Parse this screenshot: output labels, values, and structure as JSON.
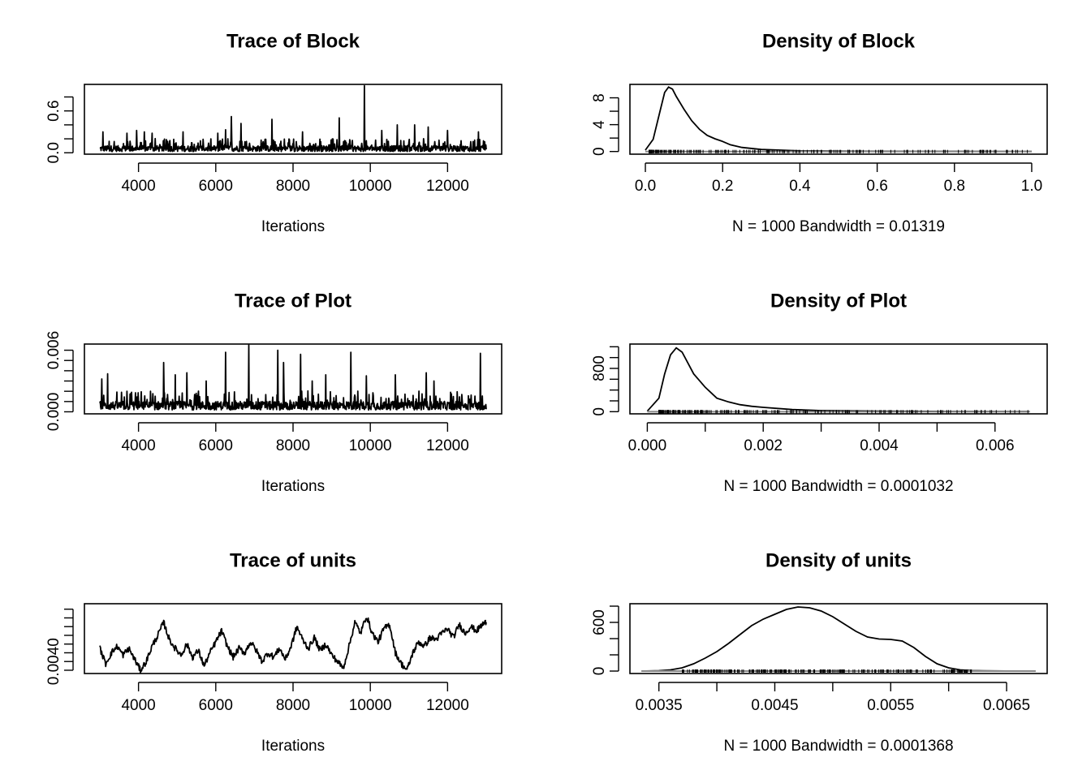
{
  "chart_data": [
    {
      "type": "line",
      "title": "Trace of Block",
      "xlabel": "Iterations",
      "xlim": [
        2600,
        13400
      ],
      "ylim": [
        -0.02,
        0.98
      ],
      "xticks": [
        4000,
        6000,
        8000,
        10000,
        12000
      ],
      "xtick_labels": [
        "4000",
        "6000",
        "8000",
        "10000",
        "12000"
      ],
      "yticks": [
        0.0,
        0.2,
        0.4,
        0.6,
        0.8
      ],
      "ytick_labels": [
        "0.0",
        "",
        "",
        "0.6",
        ""
      ],
      "x_range": [
        3000,
        13000
      ],
      "n_iter": 1000,
      "baseline": 0.06,
      "spikes": [
        {
          "x": 3080,
          "y": 0.3
        },
        {
          "x": 3700,
          "y": 0.28
        },
        {
          "x": 3950,
          "y": 0.32
        },
        {
          "x": 4150,
          "y": 0.3
        },
        {
          "x": 4350,
          "y": 0.28
        },
        {
          "x": 5150,
          "y": 0.3
        },
        {
          "x": 6050,
          "y": 0.28
        },
        {
          "x": 6250,
          "y": 0.33
        },
        {
          "x": 6400,
          "y": 0.52
        },
        {
          "x": 6650,
          "y": 0.42
        },
        {
          "x": 7450,
          "y": 0.48
        },
        {
          "x": 8250,
          "y": 0.3
        },
        {
          "x": 9200,
          "y": 0.5
        },
        {
          "x": 9850,
          "y": 0.96
        },
        {
          "x": 10300,
          "y": 0.32
        },
        {
          "x": 10700,
          "y": 0.4
        },
        {
          "x": 11150,
          "y": 0.4
        },
        {
          "x": 11500,
          "y": 0.37
        },
        {
          "x": 12000,
          "y": 0.32
        },
        {
          "x": 12800,
          "y": 0.3
        }
      ]
    },
    {
      "type": "line",
      "title": "Density of Block",
      "xlabel": "N = 1000   Bandwidth = 0.01319",
      "xlim": [
        -0.04,
        1.04
      ],
      "ylim": [
        -0.4,
        10.0
      ],
      "xticks": [
        0.0,
        0.2,
        0.4,
        0.6,
        0.8,
        1.0
      ],
      "xtick_labels": [
        "0.0",
        "0.2",
        "0.4",
        "0.6",
        "0.8",
        "1.0"
      ],
      "yticks": [
        0,
        2,
        4,
        6,
        8
      ],
      "ytick_labels": [
        "0",
        "",
        "4",
        "",
        "8"
      ],
      "x": [
        0.0,
        0.02,
        0.04,
        0.05,
        0.06,
        0.07,
        0.08,
        0.1,
        0.12,
        0.14,
        0.16,
        0.18,
        0.2,
        0.22,
        0.25,
        0.3,
        0.35,
        0.4,
        0.5,
        0.6,
        0.7,
        0.8,
        0.9,
        1.0
      ],
      "y": [
        0.2,
        1.8,
        6.5,
        8.8,
        9.6,
        9.3,
        8.2,
        6.3,
        4.6,
        3.3,
        2.4,
        1.9,
        1.5,
        1.0,
        0.6,
        0.3,
        0.2,
        0.1,
        0.05,
        0.03,
        0.02,
        0.02,
        0.01,
        0.01
      ],
      "rug_range": [
        0.01,
        0.99
      ]
    },
    {
      "type": "line",
      "title": "Trace of Plot",
      "xlabel": "Iterations",
      "xlim": [
        2600,
        13400
      ],
      "ylim": [
        -0.0002,
        0.0066
      ],
      "xticks": [
        4000,
        6000,
        8000,
        10000,
        12000
      ],
      "xtick_labels": [
        "4000",
        "6000",
        "8000",
        "10000",
        "12000"
      ],
      "yticks": [
        0.0,
        0.001,
        0.002,
        0.003,
        0.004,
        0.005,
        0.006
      ],
      "ytick_labels": [
        "0.000",
        "",
        "",
        "",
        "",
        "",
        "0.006"
      ],
      "x_range": [
        3000,
        13000
      ],
      "n_iter": 1000,
      "baseline": 0.0006,
      "spikes": [
        {
          "x": 3050,
          "y": 0.0032
        },
        {
          "x": 3200,
          "y": 0.0037
        },
        {
          "x": 3700,
          "y": 0.002
        },
        {
          "x": 4650,
          "y": 0.0048
        },
        {
          "x": 4950,
          "y": 0.0036
        },
        {
          "x": 5250,
          "y": 0.0038
        },
        {
          "x": 5750,
          "y": 0.003
        },
        {
          "x": 6250,
          "y": 0.0058
        },
        {
          "x": 6850,
          "y": 0.0065
        },
        {
          "x": 7600,
          "y": 0.006
        },
        {
          "x": 7750,
          "y": 0.0048
        },
        {
          "x": 8200,
          "y": 0.0056
        },
        {
          "x": 8500,
          "y": 0.003
        },
        {
          "x": 8850,
          "y": 0.0036
        },
        {
          "x": 9500,
          "y": 0.0058
        },
        {
          "x": 9900,
          "y": 0.0035
        },
        {
          "x": 10650,
          "y": 0.0036
        },
        {
          "x": 11450,
          "y": 0.0038
        },
        {
          "x": 11650,
          "y": 0.003
        },
        {
          "x": 12850,
          "y": 0.0057
        }
      ]
    },
    {
      "type": "line",
      "title": "Density of Plot",
      "xlabel": "N = 1000   Bandwidth = 0.0001032",
      "xlim": [
        -0.0003,
        0.0069
      ],
      "ylim": [
        -40,
        1250
      ],
      "xticks": [
        0.0,
        0.001,
        0.002,
        0.003,
        0.004,
        0.005,
        0.006
      ],
      "xtick_labels": [
        "0.000",
        "",
        "0.002",
        "",
        "0.004",
        "",
        "0.006"
      ],
      "yticks": [
        0,
        200,
        400,
        600,
        800,
        1000,
        1200
      ],
      "ytick_labels": [
        "0",
        "",
        "",
        "",
        "800",
        "",
        ""
      ],
      "x": [
        0.0,
        0.0002,
        0.0003,
        0.0004,
        0.0005,
        0.0006,
        0.0007,
        0.0008,
        0.001,
        0.0012,
        0.0014,
        0.0016,
        0.0018,
        0.002,
        0.0025,
        0.003,
        0.004,
        0.005,
        0.006,
        0.0066
      ],
      "y": [
        10,
        250,
        700,
        1050,
        1180,
        1100,
        900,
        700,
        450,
        250,
        180,
        130,
        100,
        80,
        40,
        20,
        10,
        5,
        3,
        2
      ],
      "rug_range": [
        0.0002,
        0.0066
      ]
    },
    {
      "type": "line",
      "title": "Trace of units",
      "xlabel": "Iterations",
      "xlim": [
        2600,
        13400
      ],
      "ylim": [
        0.00345,
        0.00665
      ],
      "xticks": [
        4000,
        6000,
        8000,
        10000,
        12000
      ],
      "xtick_labels": [
        "4000",
        "6000",
        "8000",
        "10000",
        "12000"
      ],
      "yticks": [
        0.0036,
        0.004,
        0.0044,
        0.0048,
        0.0052,
        0.0056,
        0.006,
        0.0064
      ],
      "ytick_labels": [
        "",
        "0.0040",
        "",
        "",
        "",
        "",
        "",
        ""
      ],
      "x_range": [
        3000,
        13000
      ],
      "n_iter": 1000,
      "x": [
        3000,
        3150,
        3300,
        3450,
        3600,
        3750,
        3900,
        4050,
        4200,
        4350,
        4500,
        4650,
        4800,
        4950,
        5100,
        5250,
        5400,
        5550,
        5700,
        5850,
        6000,
        6150,
        6300,
        6450,
        6600,
        6750,
        6900,
        7050,
        7200,
        7350,
        7500,
        7650,
        7800,
        7950,
        8100,
        8250,
        8400,
        8550,
        8700,
        8850,
        9000,
        9150,
        9300,
        9450,
        9600,
        9750,
        9900,
        10050,
        10200,
        10350,
        10500,
        10650,
        10800,
        10950,
        11100,
        11250,
        11400,
        11550,
        11700,
        11850,
        12000,
        12150,
        12300,
        12450,
        12600,
        12750,
        12900,
        13000
      ],
      "y": [
        0.0046,
        0.0039,
        0.0044,
        0.0047,
        0.0043,
        0.0046,
        0.0041,
        0.0036,
        0.004,
        0.0047,
        0.0052,
        0.0058,
        0.005,
        0.0046,
        0.0043,
        0.0048,
        0.0042,
        0.0045,
        0.0038,
        0.0044,
        0.0049,
        0.0054,
        0.0047,
        0.0042,
        0.0046,
        0.0044,
        0.0049,
        0.0045,
        0.004,
        0.0044,
        0.0042,
        0.0046,
        0.0041,
        0.0047,
        0.0056,
        0.005,
        0.0046,
        0.0051,
        0.0045,
        0.0048,
        0.0043,
        0.004,
        0.0037,
        0.0047,
        0.0058,
        0.0053,
        0.0061,
        0.0053,
        0.0049,
        0.0055,
        0.0057,
        0.0044,
        0.0039,
        0.0036,
        0.0044,
        0.0049,
        0.0047,
        0.0051,
        0.005,
        0.0053,
        0.0055,
        0.0051,
        0.0057,
        0.0053,
        0.0056,
        0.0054,
        0.0057,
        0.0058
      ]
    },
    {
      "type": "line",
      "title": "Density of units",
      "xlabel": "N = 1000   Bandwidth = 0.0001368",
      "xlim": [
        0.00325,
        0.00685
      ],
      "ylim": [
        -30,
        830
      ],
      "xticks": [
        0.0035,
        0.004,
        0.0045,
        0.005,
        0.0055,
        0.006,
        0.0065
      ],
      "xtick_labels": [
        "0.0035",
        "",
        "0.0045",
        "",
        "0.0055",
        "",
        "0.0065"
      ],
      "yticks": [
        0,
        200,
        400,
        600,
        800
      ],
      "ytick_labels": [
        "0",
        "",
        "",
        "600",
        ""
      ],
      "x": [
        0.00335,
        0.0035,
        0.0036,
        0.0037,
        0.0038,
        0.0039,
        0.004,
        0.0041,
        0.0042,
        0.0043,
        0.0044,
        0.0045,
        0.0046,
        0.0047,
        0.0048,
        0.0049,
        0.005,
        0.0051,
        0.0052,
        0.0053,
        0.0054,
        0.0055,
        0.0056,
        0.0057,
        0.0058,
        0.0059,
        0.006,
        0.0061,
        0.0062,
        0.0063,
        0.0065,
        0.00675
      ],
      "y": [
        0,
        5,
        15,
        40,
        90,
        160,
        240,
        340,
        450,
        560,
        640,
        700,
        760,
        790,
        780,
        740,
        670,
        580,
        490,
        420,
        395,
        390,
        370,
        290,
        180,
        90,
        40,
        15,
        6,
        3,
        1,
        0
      ],
      "rug_range": [
        0.0037,
        0.0062
      ]
    }
  ]
}
